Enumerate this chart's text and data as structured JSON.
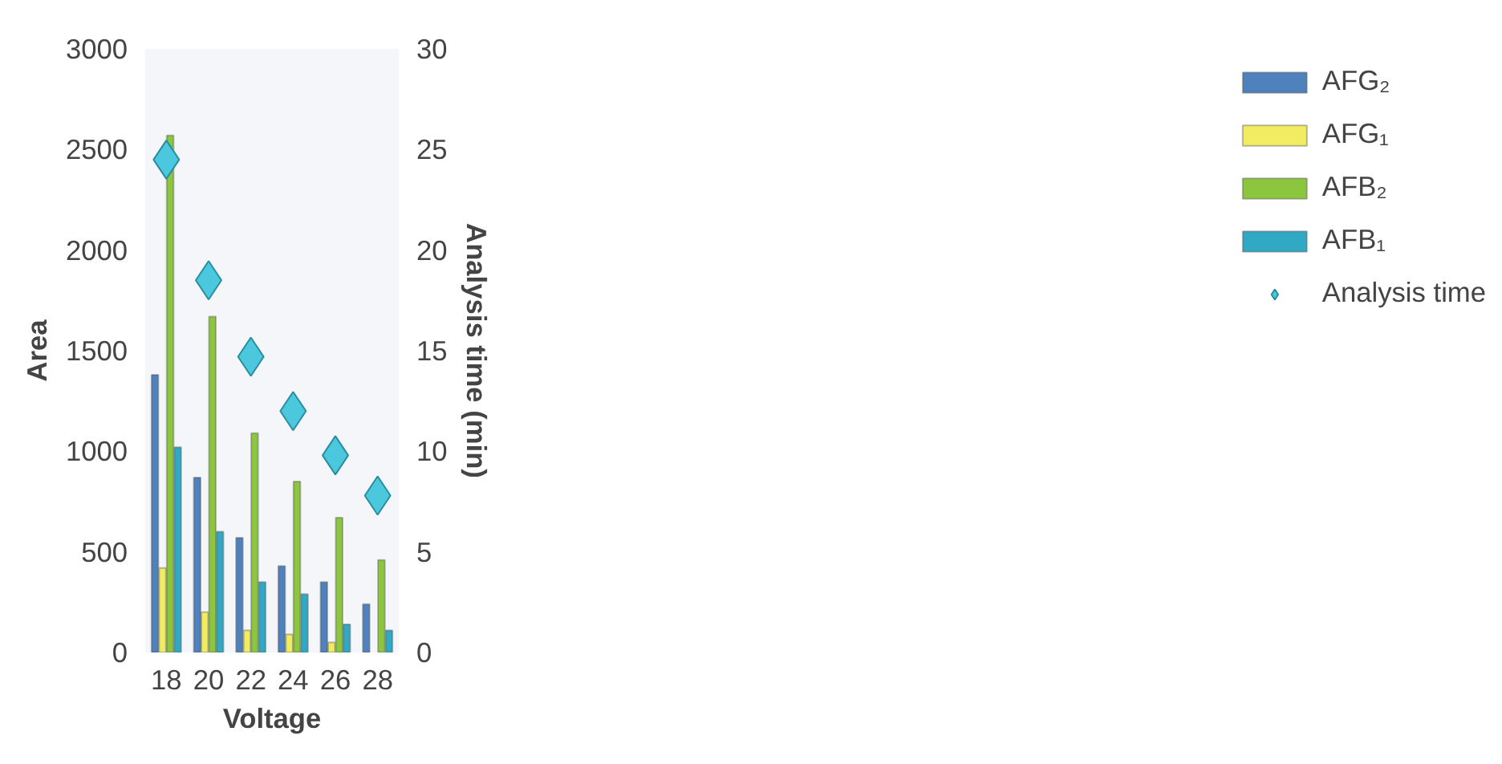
{
  "chart_data": {
    "type": "bar",
    "xlabel": "Voltage",
    "ylabel": "Area",
    "y2label": "Analysis time (min)",
    "categories": [
      "18",
      "20",
      "22",
      "24",
      "26",
      "28"
    ],
    "ylim": [
      0,
      3000
    ],
    "yticks": [
      0,
      500,
      1000,
      1500,
      2000,
      2500,
      3000
    ],
    "y2lim": [
      0,
      30
    ],
    "y2ticks": [
      0,
      5,
      10,
      15,
      20,
      25,
      30
    ],
    "grid": false,
    "legend": "right",
    "series": [
      {
        "name": "AFG₂",
        "color": "#4f81bd",
        "values": [
          1380,
          870,
          570,
          430,
          350,
          240
        ]
      },
      {
        "name": "AFG₁",
        "color": "#f2ec62",
        "values": [
          420,
          200,
          110,
          90,
          50,
          null
        ]
      },
      {
        "name": "AFB₂",
        "color": "#8cc63e",
        "values": [
          2570,
          1670,
          1090,
          850,
          670,
          460
        ]
      },
      {
        "name": "AFB₁",
        "color": "#31a8c4",
        "values": [
          1020,
          600,
          350,
          290,
          140,
          110
        ]
      },
      {
        "name": "Analysis time",
        "type": "scatter",
        "marker": "diamond",
        "axis": "y2",
        "color": "#4bc8de",
        "x": [
          "18",
          "20",
          "22",
          "24",
          "26",
          "28"
        ],
        "values": [
          24.5,
          18.5,
          14.7,
          12.0,
          9.8,
          7.8
        ]
      }
    ]
  }
}
